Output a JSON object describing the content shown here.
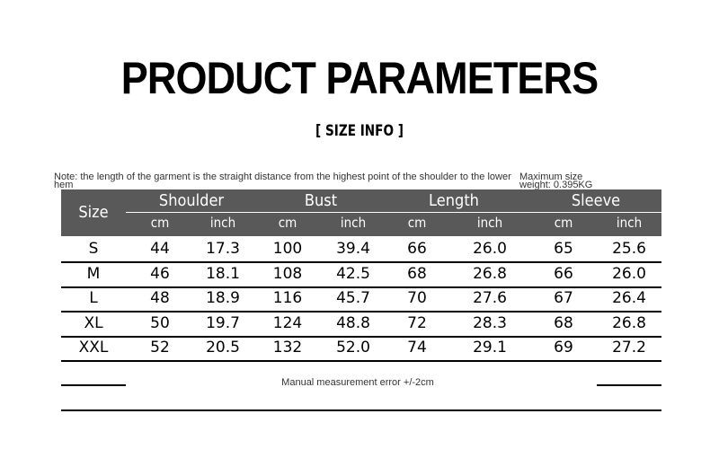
{
  "title": "PRODUCT PARAMETERS",
  "subtitle": "[ SIZE  INFO ]",
  "note": "Note: the length of the garment is the straight distance from the highest point of the shoulder to the lower hem",
  "weight": "Maximum size weight: 0.395KG",
  "table": {
    "size_header": "Size",
    "groups": [
      "Shoulder",
      "Bust",
      "Length",
      "Sleeve"
    ],
    "units": [
      "cm",
      "inch",
      "cm",
      "inch",
      "cm",
      "inch",
      "cm",
      "inch"
    ],
    "rows": [
      [
        "S",
        "44",
        "17.3",
        "100",
        "39.4",
        "66",
        "26.0",
        "65",
        "25.6"
      ],
      [
        "M",
        "46",
        "18.1",
        "108",
        "42.5",
        "68",
        "26.8",
        "66",
        "26.0"
      ],
      [
        "L",
        "48",
        "18.9",
        "116",
        "45.7",
        "70",
        "27.6",
        "67",
        "26.4"
      ],
      [
        "XL",
        "50",
        "19.7",
        "124",
        "48.8",
        "72",
        "28.3",
        "68",
        "26.8"
      ],
      [
        "XXL",
        "52",
        "20.5",
        "132",
        "52.0",
        "74",
        "29.1",
        "69",
        "27.2"
      ]
    ]
  },
  "footer": "Manual measurement error +/-2cm"
}
